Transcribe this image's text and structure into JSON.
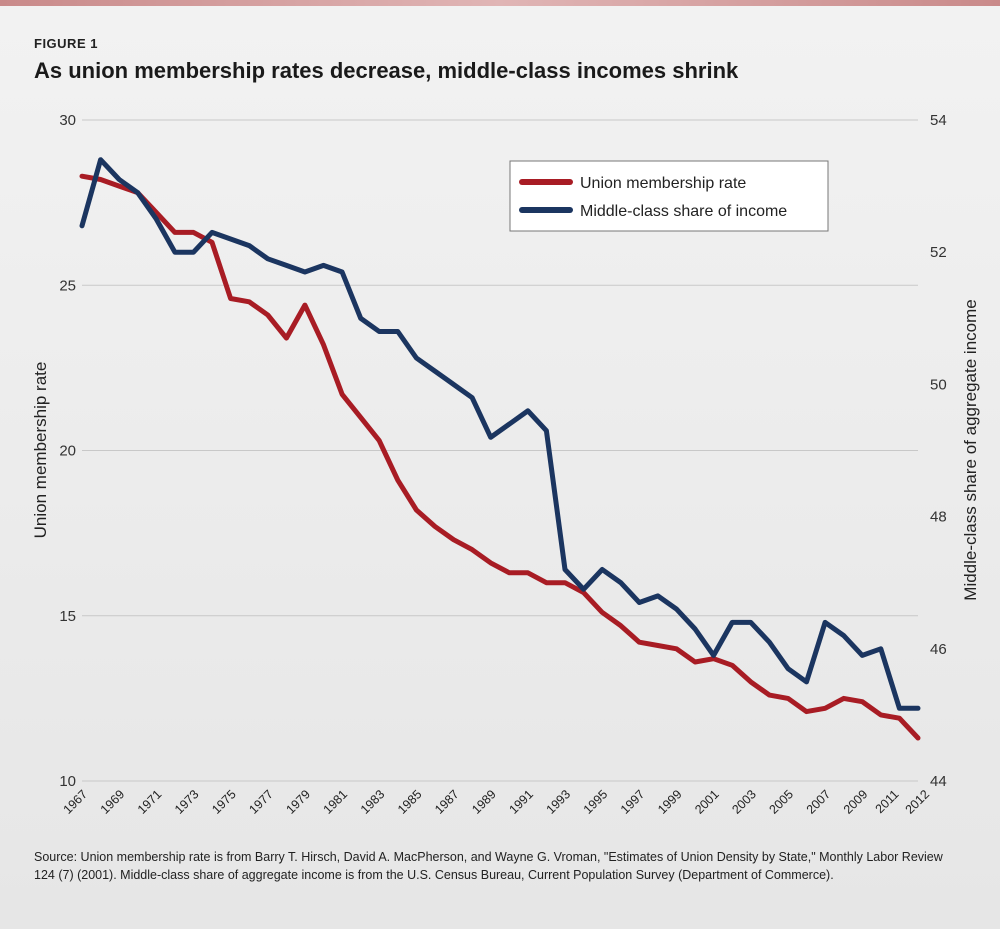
{
  "figure_label": "FIGURE 1",
  "source_note": "Source: Union membership rate is from Barry T. Hirsch, David A. MacPherson, and Wayne G. Vroman, \"Estimates of Union Density by State,\" Monthly Labor Review 124 (7) (2001). Middle-class share of aggregate income is from the U.S. Census Bureau, Current Population Survey (Department of Commerce).",
  "colors": {
    "union": "#a81c24",
    "middle_class": "#1b3560",
    "grid": "#c8c8c8"
  },
  "chart_data": {
    "type": "line",
    "title": "As union membership rates decrease, middle-class incomes shrink",
    "ylabel": "Union membership rate",
    "y2label": "Middle-class share of aggregate income",
    "ylim": [
      10,
      30
    ],
    "y2lim": [
      44,
      54
    ],
    "yticks": [
      "30",
      "25",
      "20",
      "15",
      "10"
    ],
    "y2ticks": [
      "54",
      "52",
      "50",
      "48",
      "46",
      "44"
    ],
    "xlim": [
      1967,
      2012
    ],
    "xtick_labels": [
      "1967",
      "1969",
      "1971",
      "1973",
      "1975",
      "1977",
      "1979",
      "1981",
      "1983",
      "1985",
      "1987",
      "1989",
      "1991",
      "1993",
      "1995",
      "1997",
      "1999",
      "2001",
      "2003",
      "2005",
      "2007",
      "2009",
      "2011",
      "2012"
    ],
    "legend": {
      "position": "top-right",
      "entries": [
        "Union membership rate",
        "Middle-class share of income"
      ]
    },
    "x": [
      1967,
      1968,
      1969,
      1970,
      1971,
      1972,
      1973,
      1974,
      1975,
      1976,
      1977,
      1978,
      1979,
      1980,
      1981,
      1982,
      1983,
      1984,
      1985,
      1986,
      1987,
      1988,
      1989,
      1990,
      1991,
      1992,
      1993,
      1994,
      1995,
      1996,
      1997,
      1998,
      1999,
      2000,
      2001,
      2002,
      2003,
      2004,
      2005,
      2006,
      2007,
      2008,
      2009,
      2010,
      2011,
      2012
    ],
    "series": [
      {
        "name": "Union membership rate",
        "axis": "left",
        "values": [
          28.3,
          28.2,
          28.0,
          27.8,
          27.2,
          26.6,
          26.6,
          26.3,
          24.6,
          24.5,
          24.1,
          23.4,
          24.4,
          23.2,
          21.7,
          21.0,
          20.3,
          19.1,
          18.2,
          17.7,
          17.3,
          17.0,
          16.6,
          16.3,
          16.3,
          16.0,
          16.0,
          15.7,
          15.1,
          14.7,
          14.2,
          14.1,
          14.0,
          13.6,
          13.7,
          13.5,
          13.0,
          12.6,
          12.5,
          12.1,
          12.2,
          12.5,
          12.4,
          12.0,
          11.9,
          11.3
        ]
      },
      {
        "name": "Middle-class share of income",
        "axis": "right",
        "values": [
          52.4,
          53.4,
          53.1,
          52.9,
          52.5,
          52.0,
          52.0,
          52.3,
          52.2,
          52.1,
          51.9,
          51.8,
          51.7,
          51.8,
          51.7,
          51.0,
          50.8,
          50.8,
          50.4,
          50.2,
          50.0,
          49.8,
          49.2,
          49.4,
          49.6,
          49.3,
          47.2,
          46.9,
          47.2,
          47.0,
          46.7,
          46.8,
          46.6,
          46.3,
          45.9,
          46.4,
          46.4,
          46.1,
          45.7,
          45.5,
          46.4,
          46.2,
          45.9,
          46.0,
          45.1,
          45.1
        ]
      }
    ]
  }
}
